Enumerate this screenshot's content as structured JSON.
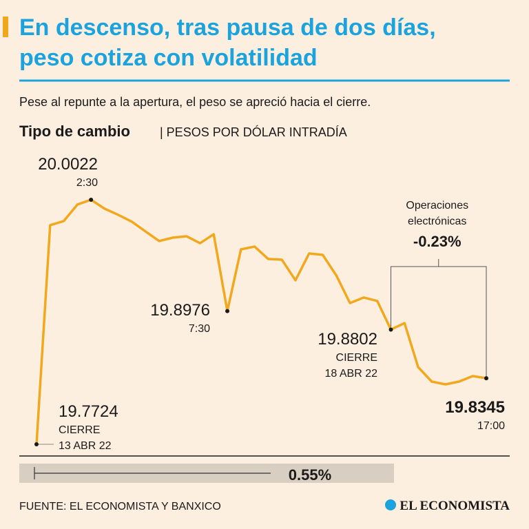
{
  "chart_data": {
    "type": "line",
    "title": [
      "En descenso, tras pausa de dos días,",
      "peso cotiza con volatilidad"
    ],
    "subtitle": "Pese al repunte a la apertura, el peso se apreció hacia el cierre.",
    "chart_title": "Tipo de cambio",
    "unit": "| PESOS POR DÓLAR INTRADÍA",
    "categories": [
      null,
      null,
      null,
      null,
      "2:30",
      null,
      null,
      null,
      null,
      null,
      null,
      null,
      null,
      null,
      "7:30",
      null,
      null,
      null,
      null,
      null,
      null,
      null,
      null,
      null,
      null,
      null,
      null,
      null,
      null,
      null,
      null,
      null,
      null,
      "17:00"
    ],
    "values": [
      19.7724,
      19.9783,
      19.9822,
      19.9977,
      20.0022,
      19.9938,
      19.988,
      19.9815,
      19.9724,
      19.9634,
      19.9666,
      19.9679,
      19.9614,
      19.9698,
      19.8976,
      19.9556,
      19.9582,
      19.9465,
      19.9459,
      19.9265,
      19.9517,
      19.9504,
      19.931,
      19.9051,
      19.9103,
      19.9071,
      19.8802,
      19.8863,
      19.8449,
      19.8313,
      19.8287,
      19.8313,
      19.8365,
      19.8345
    ],
    "value_labels": [
      "19.7724",
      null,
      null,
      null,
      "20.0022",
      null,
      null,
      null,
      null,
      null,
      null,
      null,
      null,
      null,
      "19.8976",
      null,
      null,
      null,
      null,
      null,
      null,
      null,
      null,
      null,
      null,
      null,
      "19.8802",
      null,
      null,
      null,
      null,
      null,
      null,
      "19.8345"
    ],
    "point_notes": [
      [
        "CIERRE",
        "13 ABR 22"
      ],
      null,
      null,
      null,
      null,
      null,
      null,
      null,
      null,
      null,
      null,
      null,
      null,
      null,
      null,
      null,
      null,
      null,
      null,
      null,
      null,
      null,
      null,
      null,
      null,
      null,
      [
        "CIERRE",
        "18 ABR 22"
      ],
      null,
      null,
      null,
      null,
      null,
      null,
      null
    ],
    "color": "#f2a81d",
    "changes": [
      {
        "label": [
          "Operaciones",
          "electrónicas"
        ],
        "value": -0.23,
        "value_label": "-0.23%"
      },
      {
        "value": 0.55,
        "value_label": "0.55%"
      }
    ],
    "source": "FUENTE: EL ECONOMISTA Y BANXICO",
    "brand": "EL ECONOMISTA"
  }
}
